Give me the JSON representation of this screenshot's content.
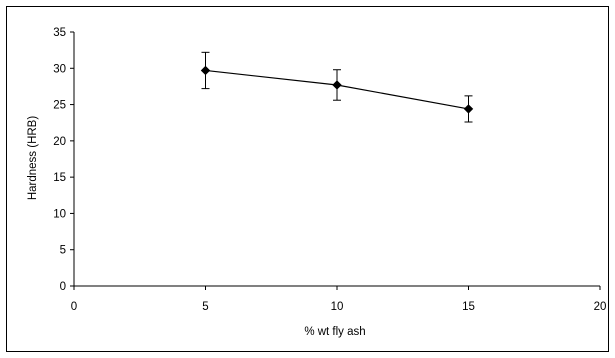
{
  "chart_data": {
    "type": "line",
    "title": "",
    "xlabel": "% wt fly ash",
    "ylabel": "Hardness (HRB)",
    "xlim": [
      0,
      20
    ],
    "ylim": [
      0,
      35
    ],
    "xticks": [
      0,
      5,
      10,
      15,
      20
    ],
    "yticks": [
      0,
      5,
      10,
      15,
      20,
      25,
      30,
      35
    ],
    "grid": false,
    "legend": "none",
    "marker": "diamond",
    "line_color": "#000000",
    "series": [
      {
        "x": [
          5,
          10,
          15
        ],
        "y": [
          29.7,
          27.7,
          24.4
        ],
        "error": [
          2.5,
          2.1,
          1.8
        ]
      }
    ]
  }
}
